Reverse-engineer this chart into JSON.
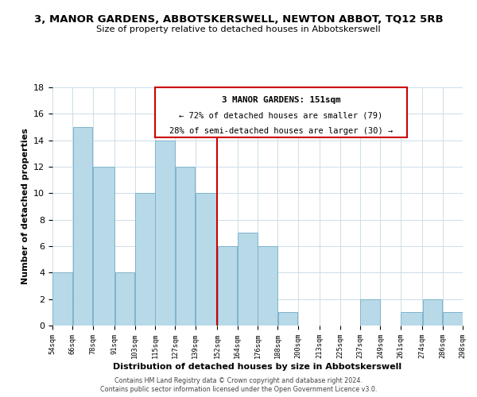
{
  "title": "3, MANOR GARDENS, ABBOTSKERSWELL, NEWTON ABBOT, TQ12 5RB",
  "subtitle": "Size of property relative to detached houses in Abbotskerswell",
  "xlabel": "Distribution of detached houses by size in Abbotskerswell",
  "ylabel": "Number of detached properties",
  "bar_edges": [
    54,
    66,
    78,
    91,
    103,
    115,
    127,
    139,
    152,
    164,
    176,
    188,
    200,
    213,
    225,
    237,
    249,
    261,
    274,
    286,
    298
  ],
  "bar_heights": [
    4,
    15,
    12,
    4,
    10,
    14,
    12,
    10,
    6,
    7,
    6,
    1,
    0,
    0,
    0,
    2,
    0,
    1,
    2,
    1
  ],
  "bar_color": "#b8d9e8",
  "bar_edge_color": "#7fb3cc",
  "property_line_x": 152,
  "property_line_color": "#cc0000",
  "annotation_title": "3 MANOR GARDENS: 151sqm",
  "annotation_line1": "← 72% of detached houses are smaller (79)",
  "annotation_line2": "28% of semi-detached houses are larger (30) →",
  "annotation_box_color": "#ffffff",
  "annotation_box_edge_color": "#cc0000",
  "ylim": [
    0,
    18
  ],
  "yticks": [
    0,
    2,
    4,
    6,
    8,
    10,
    12,
    14,
    16,
    18
  ],
  "tick_labels": [
    "54sqm",
    "66sqm",
    "78sqm",
    "91sqm",
    "103sqm",
    "115sqm",
    "127sqm",
    "139sqm",
    "152sqm",
    "164sqm",
    "176sqm",
    "188sqm",
    "200sqm",
    "213sqm",
    "225sqm",
    "237sqm",
    "249sqm",
    "261sqm",
    "274sqm",
    "286sqm",
    "298sqm"
  ],
  "footer1": "Contains HM Land Registry data © Crown copyright and database right 2024.",
  "footer2": "Contains public sector information licensed under the Open Government Licence v3.0.",
  "background_color": "#ffffff",
  "grid_color": "#ccdde8"
}
